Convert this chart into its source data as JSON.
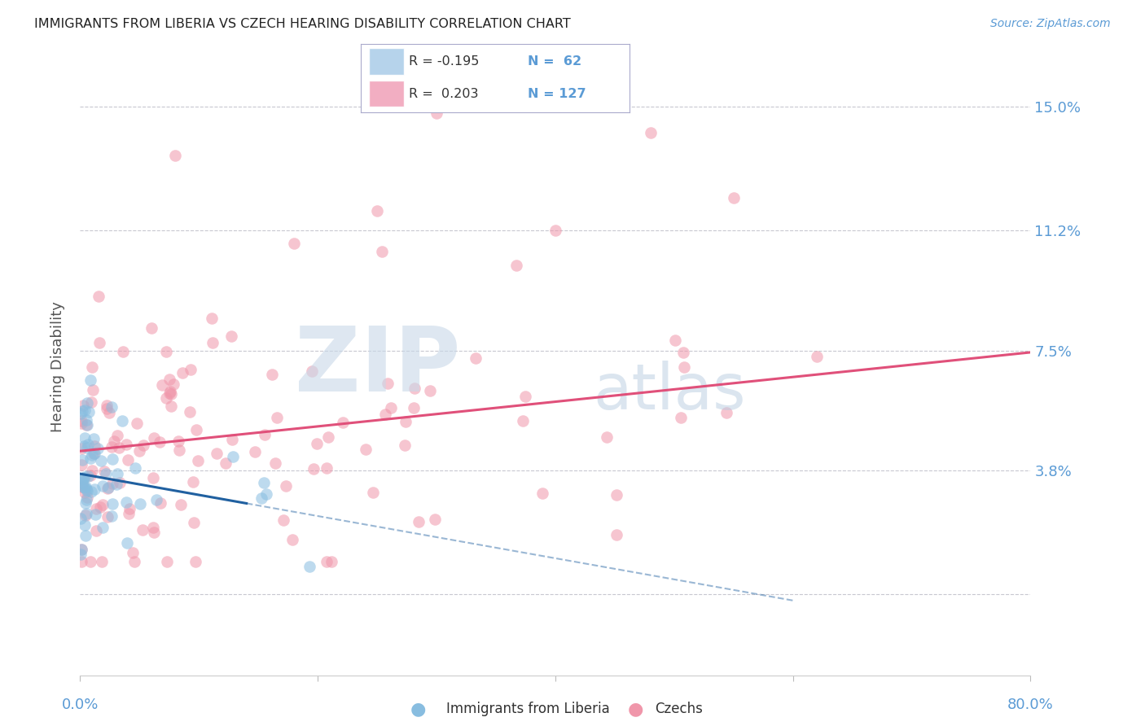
{
  "title": "IMMIGRANTS FROM LIBERIA VS CZECH HEARING DISABILITY CORRELATION CHART",
  "source": "Source: ZipAtlas.com",
  "ylabel": "Hearing Disability",
  "ytick_vals": [
    0.0,
    0.038,
    0.075,
    0.112,
    0.15
  ],
  "ytick_labels": [
    "",
    "3.8%",
    "7.5%",
    "11.2%",
    "15.0%"
  ],
  "xmin": 0.0,
  "xmax": 0.8,
  "ymin": -0.025,
  "ymax": 0.165,
  "liberia_R": -0.195,
  "liberia_N": 62,
  "czech_R": 0.203,
  "czech_N": 127,
  "liberia_color": "#88bde0",
  "czech_color": "#f096aa",
  "liberia_line_color": "#2060a0",
  "czech_line_color": "#e0507a",
  "background_color": "#ffffff",
  "grid_color": "#c8c8d0",
  "axis_label_color": "#5b9bd5",
  "title_color": "#222222",
  "watermark_zip_color": "#c8d8e8",
  "watermark_atlas_color": "#b8cce0",
  "legend_liberia_color": "#aacce8",
  "legend_czech_color": "#f0a0b8",
  "liberia_line_intercept": 0.037,
  "liberia_line_slope": -0.065,
  "czech_line_intercept": 0.044,
  "czech_line_slope": 0.038
}
